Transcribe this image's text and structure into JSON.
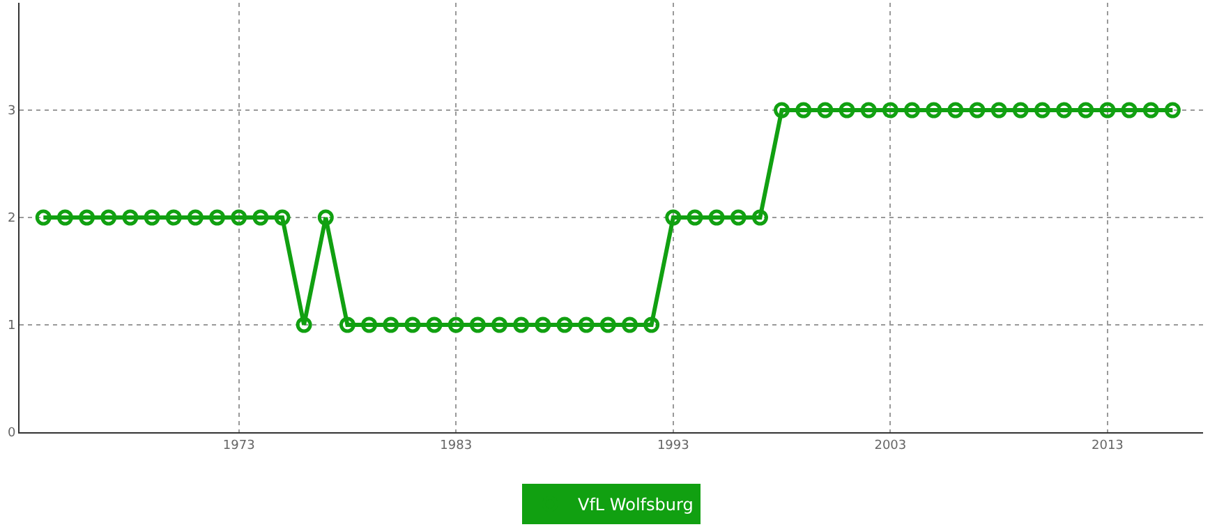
{
  "chart_data": {
    "type": "line",
    "x": [
      1964,
      1965,
      1966,
      1967,
      1968,
      1969,
      1970,
      1971,
      1972,
      1973,
      1974,
      1975,
      1976,
      1977,
      1978,
      1979,
      1980,
      1981,
      1982,
      1983,
      1984,
      1985,
      1986,
      1987,
      1988,
      1989,
      1990,
      1991,
      1992,
      1993,
      1994,
      1995,
      1996,
      1997,
      1998,
      1999,
      2000,
      2001,
      2002,
      2003,
      2004,
      2005,
      2006,
      2007,
      2008,
      2009,
      2010,
      2011,
      2012,
      2013,
      2014,
      2015,
      2016
    ],
    "series": [
      {
        "name": "VfL Wolfsburg",
        "color": "#11a011",
        "values": [
          2,
          2,
          2,
          2,
          2,
          2,
          2,
          2,
          2,
          2,
          2,
          2,
          1,
          2,
          1,
          1,
          1,
          1,
          1,
          1,
          1,
          1,
          1,
          1,
          1,
          1,
          1,
          1,
          1,
          2,
          2,
          2,
          2,
          2,
          3,
          3,
          3,
          3,
          3,
          3,
          3,
          3,
          3,
          3,
          3,
          3,
          3,
          3,
          3,
          3,
          3,
          3,
          3
        ]
      }
    ],
    "xlim": [
      1962.9,
      2017.4
    ],
    "xticks": [
      1973,
      1983,
      1993,
      2003,
      2013
    ],
    "ylim": [
      0,
      4
    ],
    "yticks": [
      0,
      1,
      2,
      3
    ],
    "grid": true,
    "legend": "bottom",
    "marker": "circle",
    "line_style": "solid"
  }
}
